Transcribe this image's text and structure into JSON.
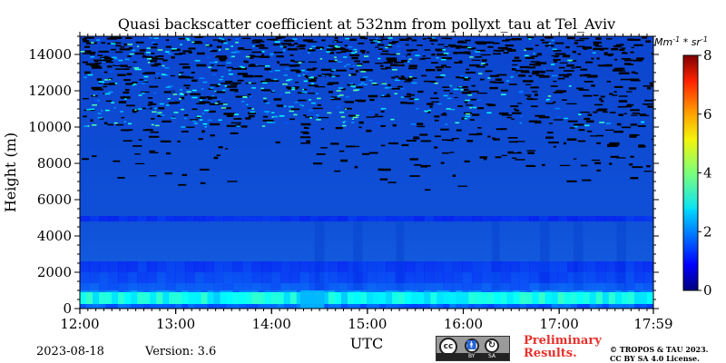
{
  "chart_data": {
    "type": "heatmap",
    "title": "Quasi backscatter coefficient at 532nm from pollyxt_tau at Tel_Aviv",
    "xlabel": "UTC",
    "ylabel": "Height (m)",
    "x_ticks": [
      "12:00",
      "13:00",
      "14:00",
      "15:00",
      "16:00",
      "17:00",
      "17:59"
    ],
    "x_range": [
      "12:00",
      "17:59"
    ],
    "y_ticks": [
      0,
      2000,
      4000,
      6000,
      8000,
      10000,
      12000,
      14000
    ],
    "y_range": [
      0,
      15000
    ],
    "colorbar": {
      "label": "Mm^-1 * sr^-1",
      "range": [
        0,
        8
      ],
      "ticks": [
        0,
        2,
        4,
        6,
        8
      ],
      "colormap": "jet"
    },
    "layers": [
      {
        "height_range": [
          0,
          1000
        ],
        "value_approx": 3.0
      },
      {
        "height_range": [
          1000,
          2500
        ],
        "value_approx": 1.3
      },
      {
        "height_range": [
          2500,
          5000
        ],
        "value_approx": 1.0
      },
      {
        "height_range": [
          5000,
          15000
        ],
        "value_approx": 0.9
      }
    ],
    "grid": false
  },
  "meta": {
    "date": "2023-08-18",
    "version": "Version: 3.6",
    "preliminary_line1": "Preliminary",
    "preliminary_line2": "Results.",
    "copyright_line1": "© TROPOS & TAU 2023.",
    "copyright_line2": "CC BY SA 4.0 License."
  },
  "license_badge": {
    "cc": "cc",
    "by": "BY",
    "sa": "SA"
  }
}
